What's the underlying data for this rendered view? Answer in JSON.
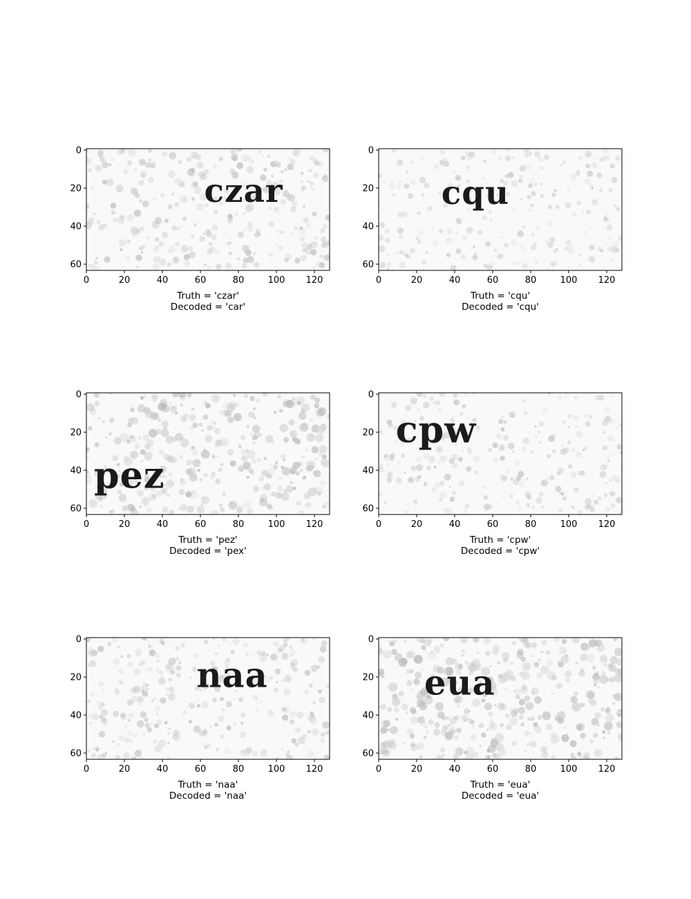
{
  "chart_data": {
    "type": "image_grid",
    "xlim": [
      0,
      128
    ],
    "ylim": [
      64,
      0
    ],
    "xticks": [
      0,
      20,
      40,
      60,
      80,
      100,
      120
    ],
    "yticks": [
      0,
      20,
      40,
      60
    ],
    "panels": [
      {
        "truth": "czar",
        "decoded": "car",
        "caption_truth": "Truth = 'czar'",
        "caption_decoded": "Decoded = 'car'",
        "word_x": 62,
        "word_y": 28,
        "word_size": 17,
        "noise": 0.55
      },
      {
        "truth": "cqu",
        "decoded": "cqu",
        "caption_truth": "Truth = 'cqu'",
        "caption_decoded": "Decoded = 'cqu'",
        "word_x": 33,
        "word_y": 29,
        "word_size": 17,
        "noise": 0.3
      },
      {
        "truth": "pez",
        "decoded": "pex",
        "caption_truth": "Truth = 'pez'",
        "caption_decoded": "Decoded = 'pex'",
        "word_x": 4,
        "word_y": 50,
        "word_size": 19,
        "noise": 0.8
      },
      {
        "truth": "cpw",
        "decoded": "cpw",
        "caption_truth": "Truth = 'cpw'",
        "caption_decoded": "Decoded = 'cpw'",
        "word_x": 9,
        "word_y": 26,
        "word_size": 19,
        "noise": 0.4
      },
      {
        "truth": "naa",
        "decoded": "naa",
        "caption_truth": "Truth = 'naa'",
        "caption_decoded": "Decoded = 'naa'",
        "word_x": 58,
        "word_y": 26,
        "word_size": 18,
        "noise": 0.5
      },
      {
        "truth": "eua",
        "decoded": "eua",
        "caption_truth": "Truth = 'eua'",
        "caption_decoded": "Decoded = 'eua'",
        "word_x": 24,
        "word_y": 30,
        "word_size": 18,
        "noise": 0.85
      }
    ]
  }
}
